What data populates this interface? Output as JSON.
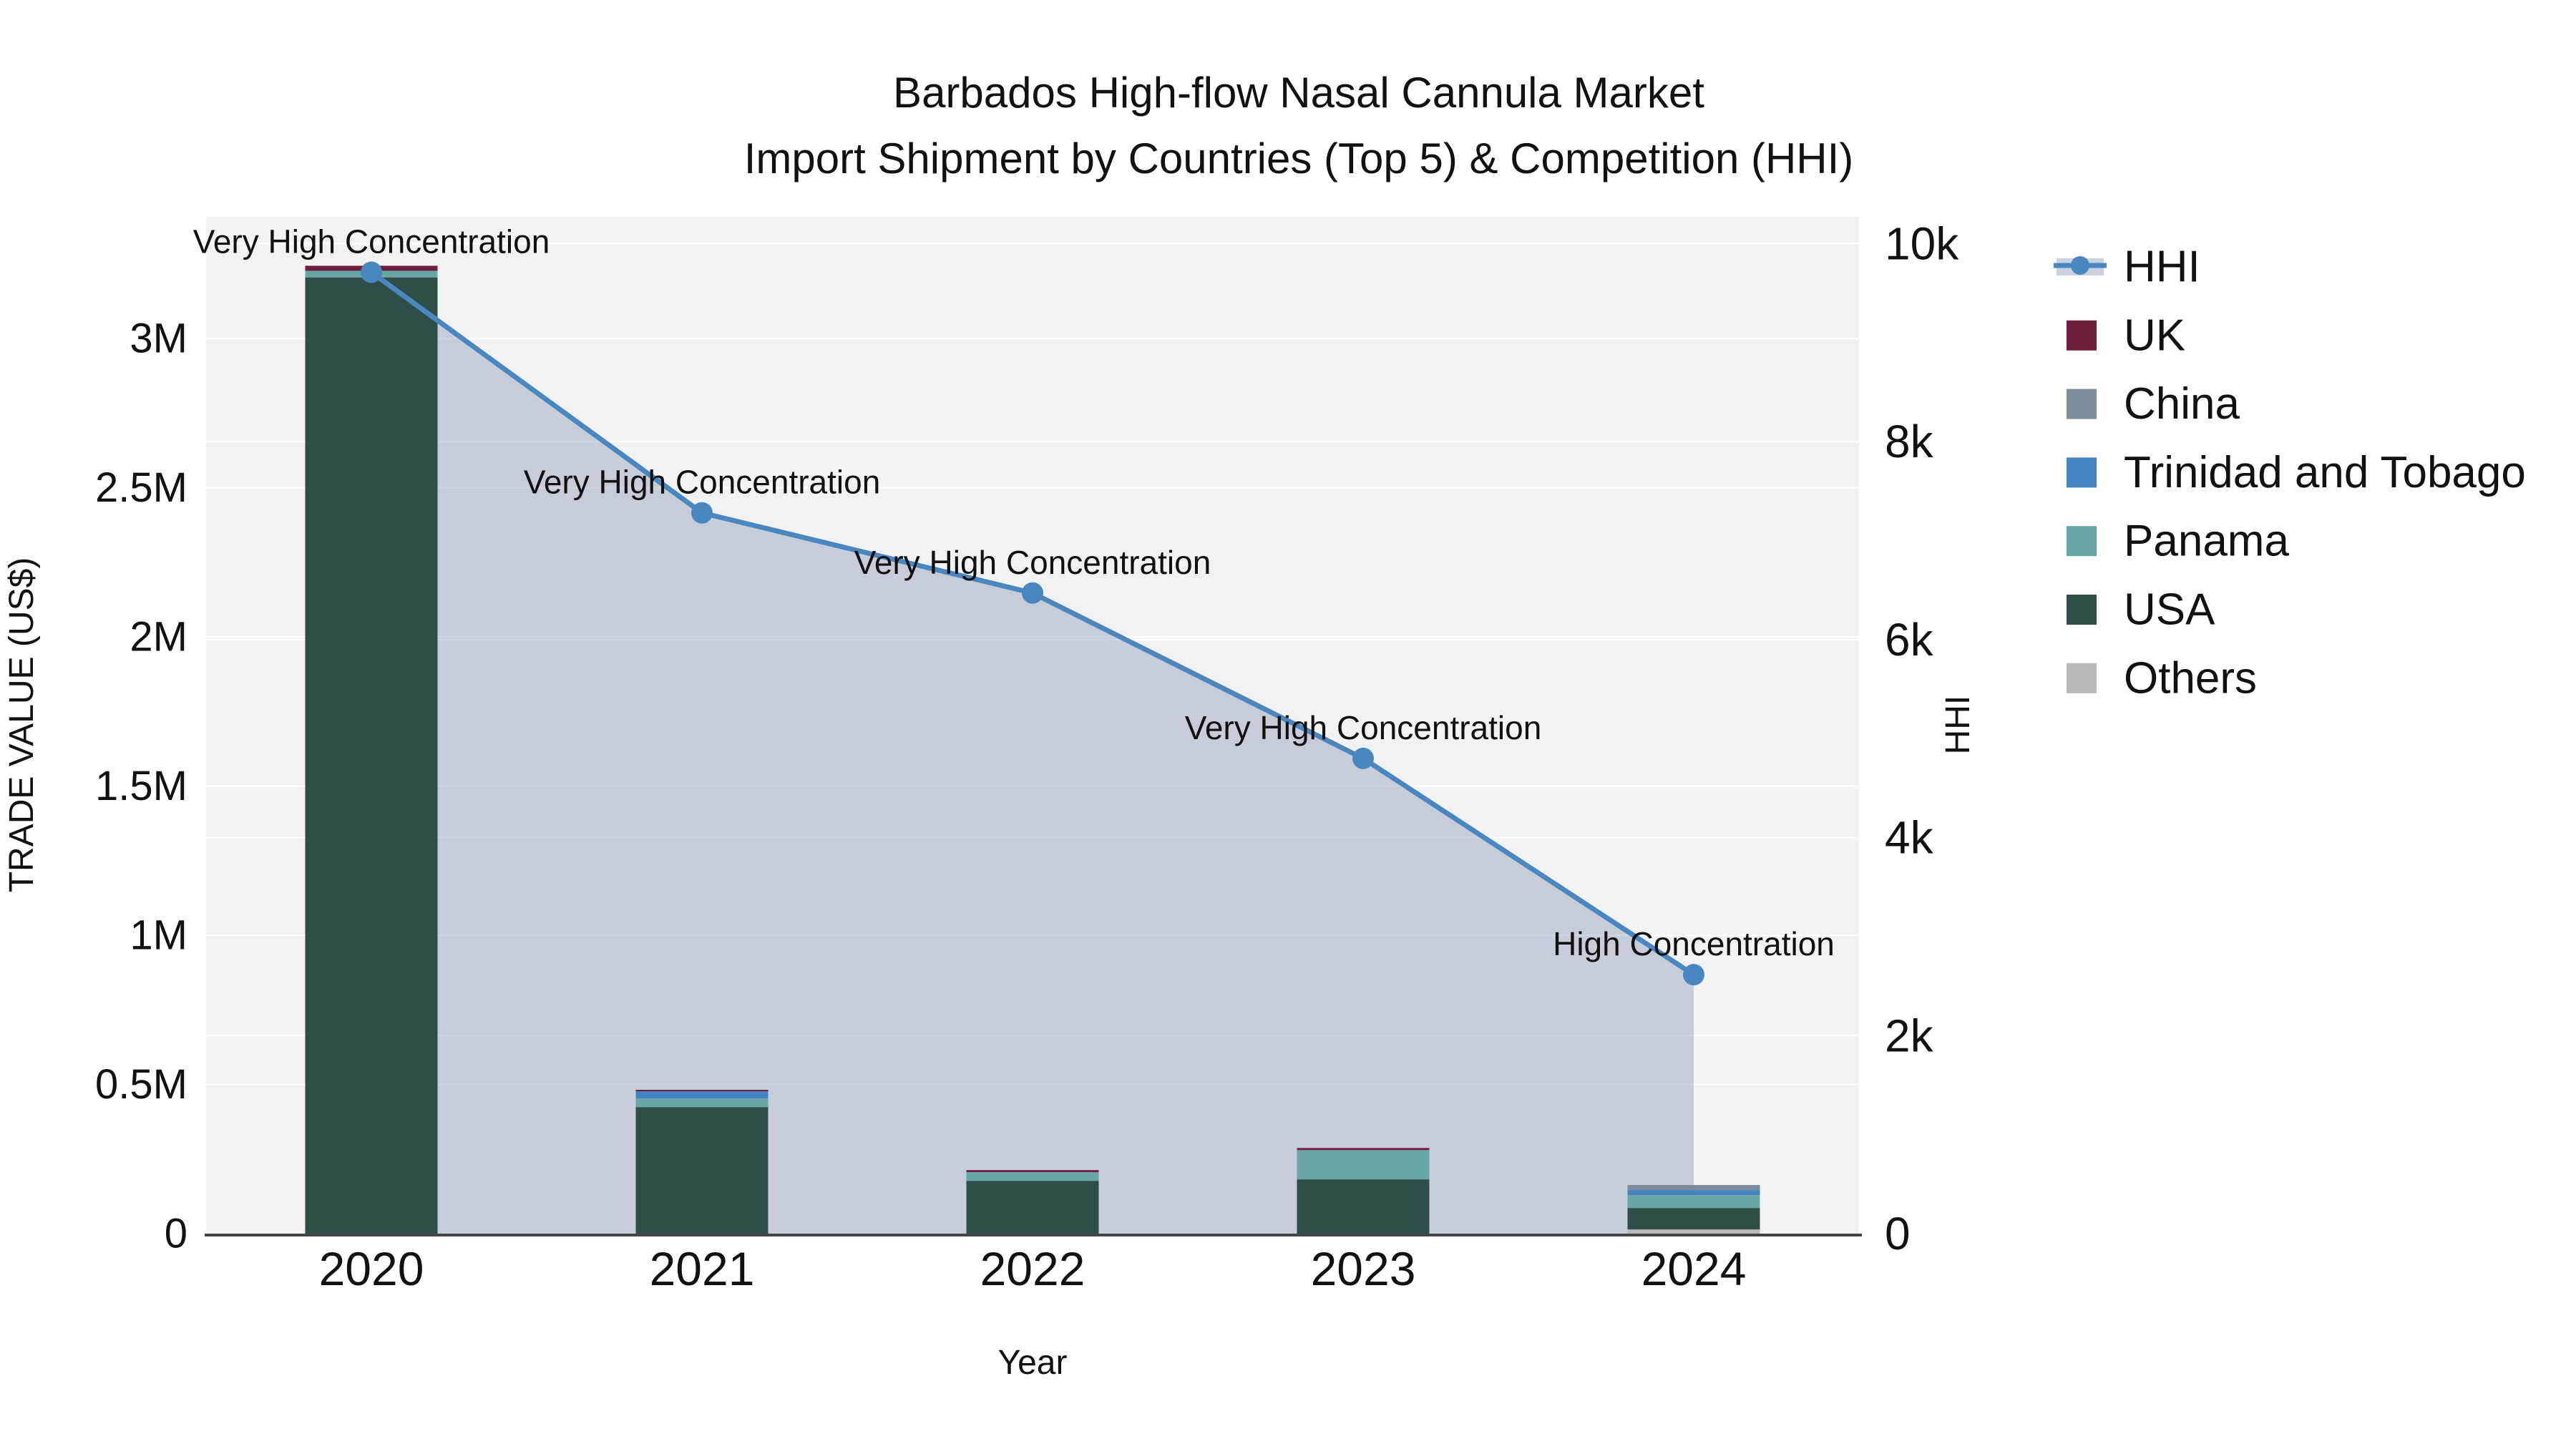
{
  "title": {
    "line1": "Barbados High-flow Nasal Cannula Market",
    "line2": "Import Shipment by Countries (Top 5) & Competition (HHI)"
  },
  "chart_data": {
    "type": "combo",
    "subtypes": [
      "stacked-bar",
      "line-area"
    ],
    "categories": [
      "2020",
      "2021",
      "2022",
      "2023",
      "2024"
    ],
    "xlabel": "Year",
    "y_left": {
      "label": "TRADE VALUE (US$)",
      "range": [
        0,
        3408000
      ],
      "tick_values": [
        0,
        500000,
        1000000,
        1500000,
        2000000,
        2500000,
        3000000
      ],
      "tick_labels": [
        "0",
        "0.5M",
        "1M",
        "1.5M",
        "2M",
        "2.5M",
        "3M"
      ]
    },
    "y_right": {
      "label": "HHI",
      "range": [
        0,
        10270
      ],
      "tick_values": [
        0,
        2000,
        4000,
        6000,
        8000,
        10000
      ],
      "tick_labels": [
        "0",
        "2k",
        "4k",
        "6k",
        "8k",
        "10k"
      ]
    },
    "bar_series": [
      {
        "name": "UK",
        "color": "#6e1f3f",
        "values": [
          17000,
          5000,
          7000,
          7000,
          0
        ]
      },
      {
        "name": "China",
        "color": "#7c8a9c",
        "values": [
          0,
          0,
          0,
          0,
          17000
        ]
      },
      {
        "name": "Trinidad and Tobago",
        "color": "#4483bf",
        "values": [
          0,
          24000,
          0,
          0,
          17000
        ]
      },
      {
        "name": "Panama",
        "color": "#68a8a4",
        "values": [
          22000,
          29000,
          29000,
          98000,
          43000
        ]
      },
      {
        "name": "USA",
        "color": "#2f4d49",
        "values": [
          3205000,
          424000,
          177000,
          182000,
          72000
        ]
      },
      {
        "name": "Others",
        "color": "#b9babb",
        "values": [
          0,
          0,
          0,
          0,
          14000
        ]
      }
    ],
    "stack_order_bottom_to_top": [
      "Others",
      "USA",
      "Panama",
      "Trinidad and Tobago",
      "China",
      "UK"
    ],
    "line_series": {
      "name": "HHI",
      "color": "#4a87c0",
      "marker_color": "#4a87c0",
      "area_color": "rgba(125,143,173,0.38)",
      "values": [
        9710,
        7280,
        6470,
        4800,
        2615
      ]
    },
    "annotations": [
      "Very High Concentration",
      "Very High Concentration",
      "Very High Concentration",
      "Very High Concentration",
      "High Concentration"
    ],
    "legend": [
      {
        "label": "HHI",
        "type": "line",
        "color": "#4a87c0",
        "band_color": "#c9d2de"
      },
      {
        "label": "UK",
        "type": "square",
        "color": "#6e1f3f"
      },
      {
        "label": "China",
        "type": "square",
        "color": "#7c8a9c"
      },
      {
        "label": "Trinidad and Tobago",
        "type": "square",
        "color": "#4483bf"
      },
      {
        "label": "Panama",
        "type": "square",
        "color": "#68a8a4"
      },
      {
        "label": "USA",
        "type": "square",
        "color": "#2f4d49"
      },
      {
        "label": "Others",
        "type": "square",
        "color": "#b9babb"
      }
    ],
    "legend_position": "right",
    "grid": true,
    "plot_bg": "#f2f2f2",
    "grid_color": "#ffffff",
    "axis_line_color": "#444444",
    "text_color": "#111111"
  }
}
